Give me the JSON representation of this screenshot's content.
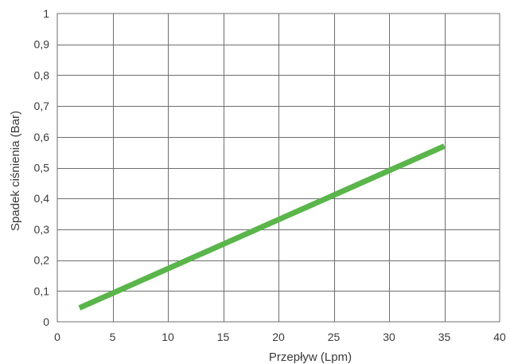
{
  "chart_data": {
    "type": "line",
    "title": "",
    "xlabel": "Przepływ (Lpm)",
    "ylabel": "Spadek ciśnienia (Bar)",
    "xlim": [
      0,
      40
    ],
    "ylim": [
      0,
      1
    ],
    "x_ticks": [
      0,
      5,
      10,
      15,
      20,
      25,
      30,
      35,
      40
    ],
    "x_tick_labels": [
      "0",
      "5",
      "10",
      "15",
      "20",
      "25",
      "30",
      "35",
      "40"
    ],
    "y_ticks": [
      0,
      0.1,
      0.2,
      0.3,
      0.4,
      0.5,
      0.6,
      0.7,
      0.8,
      0.9,
      1
    ],
    "y_tick_labels": [
      "0",
      "0,1",
      "0,2",
      "0,3",
      "0,4",
      "0,5",
      "0,6",
      "0,7",
      "0,8",
      "0,9",
      "1"
    ],
    "grid": true,
    "legend": "none",
    "series": [
      {
        "color": "#5ab54b",
        "x": [
          2,
          35
        ],
        "y": [
          0.045,
          0.57
        ]
      }
    ]
  }
}
